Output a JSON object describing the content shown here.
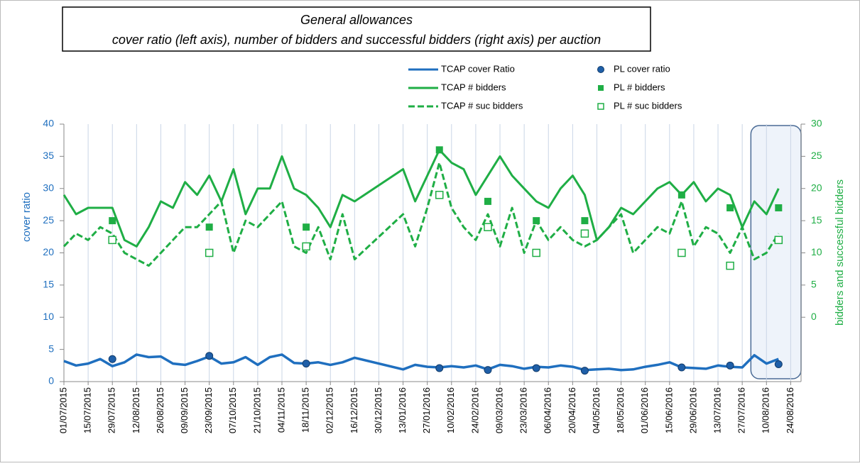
{
  "chart_data": {
    "type": "line",
    "title": [
      "General allowances",
      "cover ratio (left axis), number of bidders and successful bidders (right axis) per auction"
    ],
    "ylabel": "cover ratio",
    "y2label": "bidders and successful bidders",
    "xlim": [
      "01/07/2015",
      "30/08/2016"
    ],
    "xticks": [
      "01/07/2015",
      "15/07/2015",
      "29/07/2015",
      "12/08/2015",
      "26/08/2015",
      "09/09/2015",
      "23/09/2015",
      "07/10/2015",
      "21/10/2015",
      "04/11/2015",
      "18/11/2015",
      "02/12/2015",
      "16/12/2015",
      "30/12/2015",
      "13/01/2016",
      "27/01/2016",
      "10/02/2016",
      "24/02/2016",
      "09/03/2016",
      "23/03/2016",
      "06/04/2016",
      "20/04/2016",
      "04/05/2016",
      "18/05/2016",
      "01/06/2016",
      "15/06/2016",
      "29/06/2016",
      "13/07/2016",
      "27/07/2016",
      "10/08/2016",
      "24/08/2016"
    ],
    "ylim": [
      0,
      40
    ],
    "yticks": [
      0,
      5,
      10,
      15,
      20,
      25,
      30,
      35,
      40
    ],
    "y2lim": [
      -10,
      30
    ],
    "y2ticks": [
      0,
      5,
      10,
      15,
      20,
      25,
      30
    ],
    "highlight": [
      "01/08/2016",
      "30/08/2016"
    ],
    "series": [
      {
        "name": "TCAP cover Ratio",
        "color": "#1f6fbf",
        "marker": "line",
        "x": [
          "01/07/2015",
          "08/07/2015",
          "15/07/2015",
          "22/07/2015",
          "29/07/2015",
          "05/08/2015",
          "12/08/2015",
          "19/08/2015",
          "26/08/2015",
          "02/09/2015",
          "09/09/2015",
          "16/09/2015",
          "23/09/2015",
          "30/09/2015",
          "07/10/2015",
          "14/10/2015",
          "21/10/2015",
          "28/10/2015",
          "04/11/2015",
          "11/11/2015",
          "18/11/2015",
          "25/11/2015",
          "02/12/2015",
          "09/12/2015",
          "16/12/2015",
          "13/01/2016",
          "20/01/2016",
          "27/01/2016",
          "03/02/2016",
          "10/02/2016",
          "17/02/2016",
          "24/02/2016",
          "02/03/2016",
          "09/03/2016",
          "16/03/2016",
          "23/03/2016",
          "30/03/2016",
          "06/04/2016",
          "13/04/2016",
          "20/04/2016",
          "27/04/2016",
          "04/05/2016",
          "11/05/2016",
          "18/05/2016",
          "25/05/2016",
          "01/06/2016",
          "08/06/2016",
          "15/06/2016",
          "22/06/2016",
          "29/06/2016",
          "06/07/2016",
          "13/07/2016",
          "20/07/2016",
          "27/07/2016",
          "03/08/2016",
          "10/08/2016",
          "17/08/2016"
        ],
        "values": [
          3.2,
          2.5,
          2.8,
          3.5,
          2.4,
          3.0,
          4.2,
          3.8,
          3.9,
          2.8,
          2.6,
          3.2,
          3.9,
          2.8,
          3.0,
          3.8,
          2.6,
          3.8,
          4.2,
          2.9,
          2.8,
          3.0,
          2.6,
          3.0,
          3.7,
          1.9,
          2.6,
          2.3,
          2.2,
          2.4,
          2.2,
          2.5,
          1.9,
          2.6,
          2.4,
          2.0,
          2.3,
          2.2,
          2.5,
          2.3,
          1.8,
          1.9,
          2.0,
          1.8,
          1.9,
          2.3,
          2.6,
          3.0,
          2.2,
          2.1,
          2.0,
          2.5,
          2.3,
          2.2,
          4.1,
          2.8,
          3.5
        ]
      },
      {
        "name": "TCAP # bidders",
        "color": "#1fae45",
        "marker": "line",
        "axis": "y2",
        "x": [
          "01/07/2015",
          "08/07/2015",
          "15/07/2015",
          "22/07/2015",
          "29/07/2015",
          "05/08/2015",
          "12/08/2015",
          "19/08/2015",
          "26/08/2015",
          "02/09/2015",
          "09/09/2015",
          "16/09/2015",
          "23/09/2015",
          "30/09/2015",
          "07/10/2015",
          "14/10/2015",
          "21/10/2015",
          "28/10/2015",
          "04/11/2015",
          "11/11/2015",
          "18/11/2015",
          "25/11/2015",
          "02/12/2015",
          "09/12/2015",
          "16/12/2015",
          "13/01/2016",
          "20/01/2016",
          "27/01/2016",
          "03/02/2016",
          "10/02/2016",
          "17/02/2016",
          "24/02/2016",
          "02/03/2016",
          "09/03/2016",
          "16/03/2016",
          "23/03/2016",
          "30/03/2016",
          "06/04/2016",
          "13/04/2016",
          "20/04/2016",
          "27/04/2016",
          "04/05/2016",
          "11/05/2016",
          "18/05/2016",
          "25/05/2016",
          "01/06/2016",
          "08/06/2016",
          "15/06/2016",
          "22/06/2016",
          "29/06/2016",
          "06/07/2016",
          "13/07/2016",
          "20/07/2016",
          "27/07/2016",
          "03/08/2016",
          "10/08/2016",
          "17/08/2016"
        ],
        "values": [
          19,
          16,
          17,
          17,
          17,
          12,
          11,
          14,
          18,
          17,
          21,
          19,
          22,
          18,
          23,
          16,
          20,
          20,
          25,
          20,
          19,
          17,
          14,
          19,
          18,
          23,
          18,
          22,
          26,
          24,
          23,
          19,
          22,
          25,
          22,
          20,
          18,
          17,
          20,
          22,
          19,
          12,
          14,
          17,
          16,
          18,
          20,
          21,
          19,
          21,
          18,
          20,
          19,
          14,
          18,
          16,
          20
        ]
      },
      {
        "name": "TCAP # suc bidders",
        "color": "#1fae45",
        "marker": "dashed",
        "axis": "y2",
        "x": [
          "01/07/2015",
          "08/07/2015",
          "15/07/2015",
          "22/07/2015",
          "29/07/2015",
          "05/08/2015",
          "12/08/2015",
          "19/08/2015",
          "26/08/2015",
          "02/09/2015",
          "09/09/2015",
          "16/09/2015",
          "23/09/2015",
          "30/09/2015",
          "07/10/2015",
          "14/10/2015",
          "21/10/2015",
          "28/10/2015",
          "04/11/2015",
          "11/11/2015",
          "18/11/2015",
          "25/11/2015",
          "02/12/2015",
          "09/12/2015",
          "16/12/2015",
          "13/01/2016",
          "20/01/2016",
          "27/01/2016",
          "03/02/2016",
          "10/02/2016",
          "17/02/2016",
          "24/02/2016",
          "02/03/2016",
          "09/03/2016",
          "16/03/2016",
          "23/03/2016",
          "30/03/2016",
          "06/04/2016",
          "13/04/2016",
          "20/04/2016",
          "27/04/2016",
          "04/05/2016",
          "11/05/2016",
          "18/05/2016",
          "25/05/2016",
          "01/06/2016",
          "08/06/2016",
          "15/06/2016",
          "22/06/2016",
          "29/06/2016",
          "06/07/2016",
          "13/07/2016",
          "20/07/2016",
          "27/07/2016",
          "03/08/2016",
          "10/08/2016",
          "17/08/2016"
        ],
        "values": [
          11,
          13,
          12,
          14,
          13,
          10,
          9,
          8,
          10,
          12,
          14,
          14,
          16,
          18,
          10,
          15,
          14,
          16,
          18,
          11,
          10,
          14,
          9,
          16,
          9,
          16,
          11,
          17,
          24,
          17,
          14,
          12,
          16,
          11,
          17,
          10,
          15,
          12,
          14,
          12,
          11,
          12,
          14,
          16,
          10,
          12,
          14,
          13,
          18,
          11,
          14,
          13,
          10,
          14,
          9,
          10,
          13
        ]
      },
      {
        "name": "PL cover ratio",
        "color": "#1f5fa8",
        "marker": "circle",
        "x": [
          "29/07/2015",
          "23/09/2015",
          "18/11/2015",
          "03/02/2016",
          "02/03/2016",
          "30/03/2016",
          "27/04/2016",
          "22/06/2016",
          "20/07/2016",
          "17/08/2016"
        ],
        "values": [
          3.5,
          4.0,
          2.8,
          2.1,
          1.8,
          2.1,
          1.7,
          2.2,
          2.5,
          2.7
        ]
      },
      {
        "name": "PL # bidders",
        "color": "#1fae45",
        "marker": "square",
        "axis": "y2",
        "x": [
          "29/07/2015",
          "23/09/2015",
          "18/11/2015",
          "03/02/2016",
          "02/03/2016",
          "30/03/2016",
          "27/04/2016",
          "22/06/2016",
          "20/07/2016",
          "17/08/2016"
        ],
        "values": [
          15,
          14,
          14,
          26,
          18,
          15,
          15,
          19,
          17,
          17
        ]
      },
      {
        "name": "PL # suc bidders",
        "color": "#1fae45",
        "marker": "open-square",
        "axis": "y2",
        "x": [
          "29/07/2015",
          "23/09/2015",
          "18/11/2015",
          "03/02/2016",
          "02/03/2016",
          "30/03/2016",
          "27/04/2016",
          "22/06/2016",
          "20/07/2016",
          "17/08/2016"
        ],
        "values": [
          12,
          10,
          11,
          19,
          14,
          10,
          13,
          10,
          8,
          12
        ]
      }
    ]
  }
}
